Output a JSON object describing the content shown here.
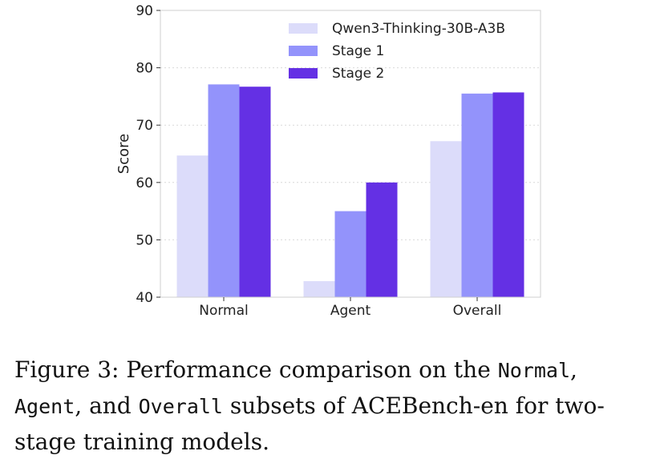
{
  "chart_data": {
    "type": "bar",
    "categories": [
      "Normal",
      "Agent",
      "Overall"
    ],
    "series": [
      {
        "name": "Qwen3-Thinking-30B-A3B",
        "values": [
          64.7,
          42.8,
          67.2
        ],
        "color": "#dcdcfa"
      },
      {
        "name": "Stage 1",
        "values": [
          77.1,
          55.0,
          75.5
        ],
        "color": "#9393fb"
      },
      {
        "name": "Stage 2",
        "values": [
          76.7,
          60.0,
          75.7
        ],
        "color": "#6430e4"
      }
    ],
    "ylabel": "Score",
    "xlabel": "",
    "ylim": [
      40,
      90
    ],
    "yticks": [
      40,
      50,
      60,
      70,
      80,
      90
    ],
    "grid": true,
    "legend_position": "top-right"
  },
  "caption": {
    "figure_label": "Figure 3:",
    "text_1": " Performance comparison on the ",
    "code_normal": "Normal",
    "text_2": ", ",
    "code_agent": "Agent",
    "text_3": ", and ",
    "code_overall": "Overall",
    "text_4": " subsets of ACEBench-en for two-stage training models."
  }
}
